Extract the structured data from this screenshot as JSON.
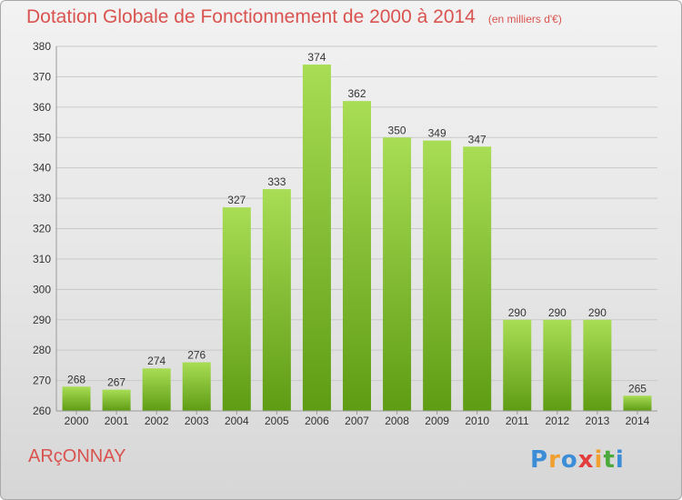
{
  "chart_data": {
    "type": "bar",
    "title": "Dotation Globale de Fonctionnement de 2000 à 2014",
    "subtitle": "(en milliers d'€)",
    "categories": [
      "2000",
      "2001",
      "2002",
      "2003",
      "2004",
      "2005",
      "2006",
      "2007",
      "2008",
      "2009",
      "2010",
      "2011",
      "2012",
      "2013",
      "2014"
    ],
    "values": [
      268,
      267,
      274,
      276,
      327,
      333,
      374,
      362,
      350,
      349,
      347,
      290,
      290,
      290,
      265
    ],
    "ylim": [
      260,
      380
    ],
    "yticks": [
      260,
      270,
      280,
      290,
      300,
      310,
      320,
      330,
      340,
      350,
      360,
      370,
      380
    ],
    "grid": true,
    "xlabel": "",
    "ylabel": ""
  },
  "place_name": "ARçONNAY",
  "logo": {
    "text": "Proxiti",
    "letters": [
      "P",
      "r",
      "o",
      "x",
      "i",
      "t",
      "i"
    ],
    "colors": [
      "#3c8dd8",
      "#f0a030",
      "#3c8dd8",
      "#e23c3c",
      "#f0a030",
      "#4caa3c",
      "#3c8dd8"
    ]
  },
  "colors": {
    "title": "#d9534f",
    "bar_light": "#a8dd55",
    "bar_dark": "#5e9c14",
    "grid": "#c9c9c9"
  }
}
